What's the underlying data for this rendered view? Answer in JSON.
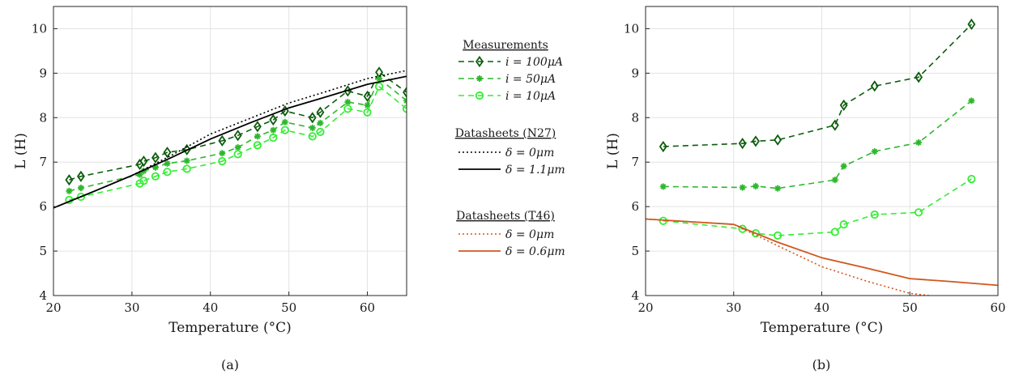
{
  "chart_data": [
    {
      "type": "line",
      "caption": "(a)",
      "xlabel": "Temperature (°C)",
      "ylabel": "L (H)",
      "xlim": [
        20,
        65
      ],
      "ylim": [
        4,
        10.5
      ],
      "xticks": [
        "20",
        "30",
        "40",
        "50",
        "60"
      ],
      "yticks": [
        "4",
        "5",
        "6",
        "7",
        "8",
        "9",
        "10"
      ],
      "grid": true,
      "series": [
        {
          "name": "i = 100μA",
          "color": "#0b5c0b",
          "style": "dashed",
          "marker": "diamond",
          "x": [
            22,
            23.5,
            31,
            31.5,
            33,
            34.5,
            37,
            41.5,
            43.5,
            46,
            48,
            49.5,
            53,
            54,
            57.5,
            60,
            61.5,
            65
          ],
          "y": [
            6.6,
            6.68,
            6.95,
            7.02,
            7.1,
            7.22,
            7.28,
            7.48,
            7.6,
            7.8,
            7.95,
            8.15,
            8.0,
            8.12,
            8.6,
            8.48,
            9.02,
            8.57
          ]
        },
        {
          "name": "i = 50μA",
          "color": "#2db82d",
          "style": "dashed",
          "marker": "asterisk",
          "x": [
            22,
            23.5,
            31,
            31.5,
            33,
            34.5,
            37,
            41.5,
            43.5,
            46,
            48,
            49.5,
            53,
            54,
            57.5,
            60,
            61.5,
            65
          ],
          "y": [
            6.35,
            6.42,
            6.72,
            6.8,
            6.88,
            6.97,
            7.03,
            7.2,
            7.33,
            7.58,
            7.72,
            7.9,
            7.77,
            7.88,
            8.35,
            8.28,
            8.88,
            8.38
          ]
        },
        {
          "name": "i = 10μA",
          "color": "#33ee33",
          "style": "dashed",
          "marker": "circle",
          "x": [
            22,
            23.5,
            31,
            31.5,
            33,
            34.5,
            37,
            41.5,
            43.5,
            46,
            48,
            49.5,
            53,
            54,
            57.5,
            60,
            61.5,
            65
          ],
          "y": [
            6.15,
            6.22,
            6.52,
            6.58,
            6.68,
            6.78,
            6.85,
            7.02,
            7.18,
            7.38,
            7.55,
            7.72,
            7.58,
            7.68,
            8.2,
            8.12,
            8.7,
            8.2
          ]
        },
        {
          "name": "δ = 0μm",
          "color": "#000000",
          "style": "dotted",
          "marker": "none",
          "x": [
            20,
            25,
            30,
            35,
            40,
            45,
            50,
            55,
            60,
            65
          ],
          "y": [
            5.97,
            6.33,
            6.7,
            7.15,
            7.63,
            7.98,
            8.33,
            8.6,
            8.88,
            9.06
          ]
        },
        {
          "name": "δ = 1.1μm",
          "color": "#000000",
          "style": "solid",
          "marker": "none",
          "x": [
            20,
            25,
            30,
            35,
            40,
            45,
            50,
            55,
            60,
            65
          ],
          "y": [
            5.97,
            6.33,
            6.7,
            7.1,
            7.52,
            7.88,
            8.22,
            8.48,
            8.75,
            8.93
          ]
        }
      ]
    },
    {
      "type": "line",
      "caption": "(b)",
      "xlabel": "Temperature (°C)",
      "ylabel": "L (H)",
      "xlim": [
        20,
        60
      ],
      "ylim": [
        4,
        10.5
      ],
      "xticks": [
        "20",
        "30",
        "40",
        "50",
        "60"
      ],
      "yticks": [
        "4",
        "5",
        "6",
        "7",
        "8",
        "9",
        "10"
      ],
      "grid": true,
      "series": [
        {
          "name": "i = 100μA",
          "color": "#0b5c0b",
          "style": "dashed",
          "marker": "diamond",
          "x": [
            22,
            31,
            32.5,
            35,
            41.5,
            42.5,
            46,
            51,
            57
          ],
          "y": [
            7.35,
            7.42,
            7.47,
            7.5,
            7.83,
            8.28,
            8.71,
            8.91,
            10.1
          ]
        },
        {
          "name": "i = 50μA",
          "color": "#2db82d",
          "style": "dashed",
          "marker": "asterisk",
          "x": [
            22,
            31,
            32.5,
            35,
            41.5,
            42.5,
            46,
            51,
            57
          ],
          "y": [
            6.45,
            6.43,
            6.46,
            6.41,
            6.6,
            6.91,
            7.24,
            7.44,
            8.38
          ]
        },
        {
          "name": "i = 10μA",
          "color": "#33ee33",
          "style": "dashed",
          "marker": "circle",
          "x": [
            22,
            31,
            32.5,
            35,
            41.5,
            42.5,
            46,
            51,
            57
          ],
          "y": [
            5.68,
            5.5,
            5.4,
            5.35,
            5.43,
            5.6,
            5.82,
            5.87,
            6.62
          ]
        },
        {
          "name": "δ = 0μm",
          "color": "#d2561c",
          "style": "dotted",
          "marker": "none",
          "x": [
            20,
            30,
            35,
            40,
            45,
            50,
            53
          ],
          "y": [
            5.72,
            5.6,
            5.12,
            4.65,
            4.33,
            4.05,
            3.98
          ]
        },
        {
          "name": "δ = 0.6μm",
          "color": "#d2561c",
          "style": "solid",
          "marker": "none",
          "x": [
            20,
            30,
            35,
            40,
            45,
            50,
            55,
            60
          ],
          "y": [
            5.72,
            5.6,
            5.2,
            4.85,
            4.62,
            4.38,
            4.31,
            4.23
          ]
        }
      ]
    }
  ],
  "legend": {
    "groups": [
      {
        "title": "Measurements",
        "entries": [
          {
            "label": "i = 100μA",
            "color": "#0b5c0b",
            "style": "dashed",
            "marker": "diamond"
          },
          {
            "label": "i = 50μA",
            "color": "#2db82d",
            "style": "dashed",
            "marker": "asterisk"
          },
          {
            "label": "i = 10μA",
            "color": "#33ee33",
            "style": "dashed",
            "marker": "circle"
          }
        ]
      },
      {
        "title": "Datasheets (N27)",
        "entries": [
          {
            "label": "δ = 0μm",
            "color": "#000000",
            "style": "dotted",
            "marker": "none"
          },
          {
            "label": "δ = 1.1μm",
            "color": "#000000",
            "style": "solid",
            "marker": "none"
          }
        ]
      },
      {
        "title": "Datasheets (T46)",
        "entries": [
          {
            "label": "δ = 0μm",
            "color": "#d2561c",
            "style": "dotted",
            "marker": "none"
          },
          {
            "label": "δ = 0.6μm",
            "color": "#d2561c",
            "style": "solid",
            "marker": "none"
          }
        ]
      }
    ]
  }
}
